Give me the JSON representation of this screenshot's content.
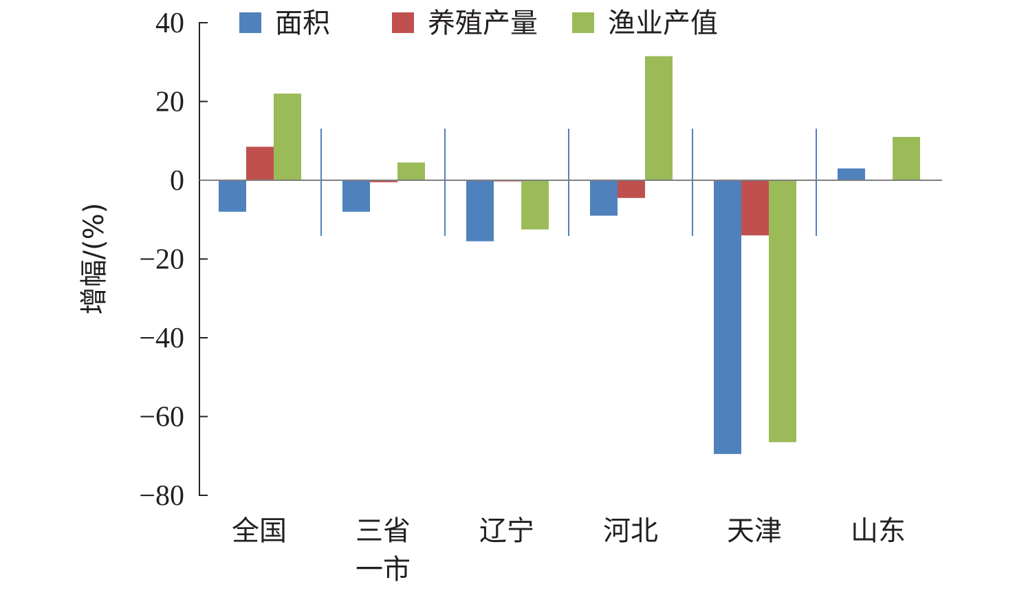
{
  "chart_data": {
    "type": "bar",
    "title": "",
    "xlabel": "",
    "ylabel": "增幅/(%)",
    "ylim": [
      -80,
      40
    ],
    "yticks": [
      40,
      20,
      0,
      -20,
      -40,
      -60,
      -80
    ],
    "ytick_labels": [
      "40",
      "20",
      "0",
      "−20",
      "−40",
      "−60",
      "−80"
    ],
    "categories": [
      [
        "全国"
      ],
      [
        "三省",
        "一市"
      ],
      [
        "辽宁"
      ],
      [
        "河北"
      ],
      [
        "天津"
      ],
      [
        "山东"
      ]
    ],
    "series": [
      {
        "name": "面积",
        "color": "#4f81bd",
        "values": [
          -8,
          -8,
          -15.5,
          -9,
          -69.5,
          3
        ]
      },
      {
        "name": "养殖产量",
        "color": "#c0504d",
        "values": [
          8.5,
          -0.5,
          -0.3,
          -4.5,
          -14,
          0
        ]
      },
      {
        "name": "渔业产值",
        "color": "#9bbb59",
        "values": [
          22,
          4.5,
          -12.5,
          31.5,
          -66.5,
          11
        ]
      }
    ],
    "legend": "top",
    "grid": false
  }
}
